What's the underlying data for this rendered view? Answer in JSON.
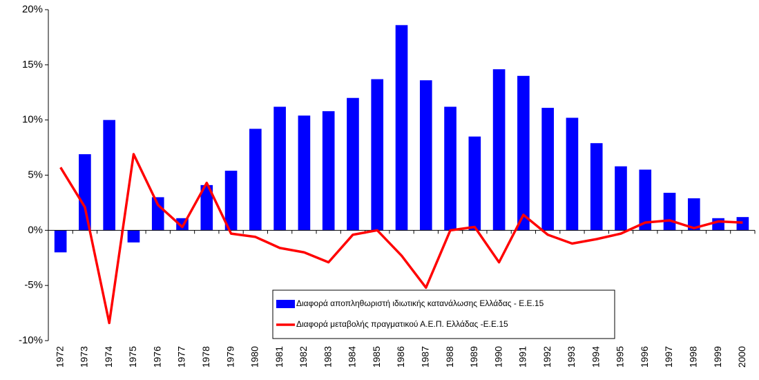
{
  "chart_data": {
    "type": "bar",
    "categories": [
      "1972",
      "1973",
      "1974",
      "1975",
      "1976",
      "1977",
      "1978",
      "1979",
      "1980",
      "1981",
      "1982",
      "1983",
      "1984",
      "1985",
      "1986",
      "1987",
      "1988",
      "1989",
      "1990",
      "1991",
      "1992",
      "1993",
      "1994",
      "1995",
      "1996",
      "1997",
      "1998",
      "1999",
      "2000"
    ],
    "series": [
      {
        "name": "Διαφορά αποπληθωριστή ιδιωτικής κατανάλωσης Ελλάδας - Ε.Ε.15",
        "color": "#0000ff",
        "type": "bar",
        "values": [
          -2.0,
          6.9,
          10.0,
          -1.1,
          3.0,
          1.1,
          4.1,
          5.4,
          9.2,
          11.2,
          10.4,
          10.8,
          12.0,
          13.7,
          18.6,
          13.6,
          11.2,
          8.5,
          14.6,
          14.0,
          11.1,
          10.2,
          7.9,
          5.8,
          5.5,
          3.4,
          2.9,
          1.1,
          1.2
        ]
      },
      {
        "name": "Διαφορά μεταβολής πραγματικού Α.Ε.Π. Ελλάδας -Ε.Ε.15",
        "color": "#ff0000",
        "type": "line",
        "values": [
          5.7,
          2.1,
          -8.4,
          6.9,
          2.3,
          0.3,
          4.3,
          -0.3,
          -0.6,
          -1.6,
          -2.0,
          -2.9,
          -0.4,
          0.0,
          -2.3,
          -5.2,
          0.0,
          0.3,
          -2.9,
          1.4,
          -0.4,
          -1.2,
          -0.8,
          -0.3,
          0.7,
          0.9,
          0.2,
          0.8,
          0.7
        ]
      }
    ],
    "ylim": [
      -10,
      20
    ],
    "yticks": [
      {
        "value": -10,
        "label": "-10%"
      },
      {
        "value": -5,
        "label": "-5%"
      },
      {
        "value": 0,
        "label": "0%"
      },
      {
        "value": 5,
        "label": "5%"
      },
      {
        "value": 10,
        "label": "10%"
      },
      {
        "value": 15,
        "label": "15%"
      },
      {
        "value": 20,
        "label": "20%"
      }
    ],
    "grid": false,
    "legend": "bottom-center"
  }
}
